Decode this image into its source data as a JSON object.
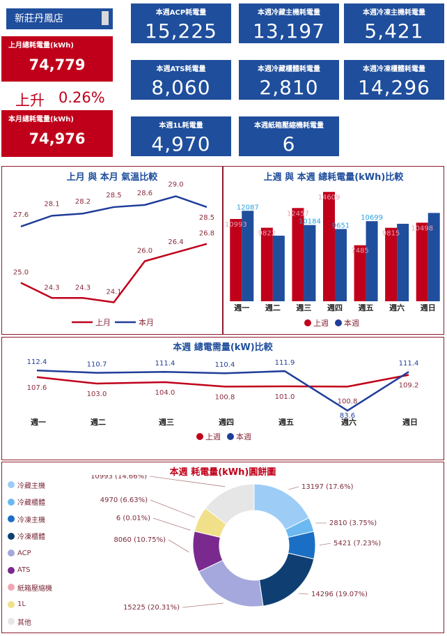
{
  "store": {
    "name": "新莊丹鳳店"
  },
  "last_month": {
    "label": "上月總耗電量(kWh)",
    "value": "74,779"
  },
  "change": {
    "direction": "上升",
    "percent": "0.26%"
  },
  "this_month": {
    "label": "本月總耗電量(kWh)",
    "value": "74,976"
  },
  "kpis": [
    {
      "label": "本週ACP耗電量",
      "value": "15,225"
    },
    {
      "label": "本週冷藏主機耗電量",
      "value": "13,197"
    },
    {
      "label": "本週冷凍主機耗電量",
      "value": "5,421"
    },
    {
      "label": "本週ATS耗電量",
      "value": "8,060"
    },
    {
      "label": "本週冷藏櫃體耗電量",
      "value": "2,810"
    },
    {
      "label": "本週冷凍櫃體耗電量",
      "value": "14,296"
    },
    {
      "label": "本週1L耗電量",
      "value": "4,970"
    },
    {
      "label": "本週紙箱壓縮機耗電量",
      "value": "6"
    }
  ],
  "colors": {
    "red": "#c0001a",
    "blue": "#1f4e9c",
    "navy": "#1f3d99",
    "lightblue": "#29a0e0",
    "pink": "#e8a0b0"
  },
  "chart_data": [
    {
      "type": "line",
      "title": "上月 與 本月 氣溫比較",
      "x": [
        1,
        2,
        3,
        4,
        5,
        6,
        7
      ],
      "series": [
        {
          "name": "上月",
          "values": [
            25.0,
            24.3,
            24.3,
            24.1,
            26.0,
            26.4,
            26.8
          ]
        },
        {
          "name": "本月",
          "values": [
            27.6,
            28.1,
            28.2,
            28.5,
            28.6,
            29.0,
            28.5
          ]
        }
      ],
      "legend": "bottom"
    },
    {
      "type": "bar",
      "title": "上週 與 本週 總耗電量(kWh)比較",
      "categories": [
        "週一",
        "週二",
        "週三",
        "週四",
        "週五",
        "週六",
        "週日"
      ],
      "series": [
        {
          "name": "上週",
          "values": [
            10993,
            9822,
            12457,
            14609,
            7485,
            9815,
            10498
          ]
        },
        {
          "name": "本週",
          "values": [
            12087,
            8760,
            10184,
            9651,
            10699,
            10350,
            11800
          ]
        }
      ],
      "data_labels_last_week": [
        "10993",
        "9822",
        "12457",
        "14609",
        "7485",
        "9815",
        "10498"
      ],
      "data_labels_this_week": [
        "12087",
        "",
        "10184",
        "9651",
        "10699",
        "",
        ""
      ],
      "legend": "bottom"
    },
    {
      "type": "line",
      "title": "本週 總電需量(kW)比較",
      "categories": [
        "週一",
        "週二",
        "週三",
        "週四",
        "週五",
        "週六",
        "週日"
      ],
      "series": [
        {
          "name": "上週",
          "values": [
            107.6,
            103.0,
            104.0,
            100.8,
            101.0,
            100.8,
            109.2
          ]
        },
        {
          "name": "本週",
          "values": [
            112.4,
            110.7,
            111.4,
            110.4,
            111.9,
            83.6,
            111.4
          ]
        }
      ],
      "legend": "bottom"
    },
    {
      "type": "pie",
      "title": "本週 耗電量(kWh)圓餅圖",
      "legend_labels": [
        "冷藏主機",
        "冷藏櫃體",
        "冷凍主機",
        "冷凍櫃體",
        "ACP",
        "ATS",
        "紙箱壓縮機",
        "1L",
        "其他"
      ],
      "legend_colors": [
        "#9dcdf7",
        "#6cb8f0",
        "#1a6fc4",
        "#0f3f72",
        "#a4a8dc",
        "#7a2a8e",
        "#f2a6b3",
        "#f0e08a",
        "#e6e6e6"
      ],
      "slices": [
        {
          "value": 13197,
          "label": "13197 (17.6%)",
          "color": "#9dcdf7"
        },
        {
          "value": 2810,
          "label": "2810 (3.75%)",
          "color": "#6cb8f0"
        },
        {
          "value": 5421,
          "label": "5421 (7.23%)",
          "color": "#1a6fc4"
        },
        {
          "value": 14296,
          "label": "14296 (19.07%)",
          "color": "#0f3f72"
        },
        {
          "value": 15225,
          "label": "15225 (20.31%)",
          "color": "#a4a8dc"
        },
        {
          "value": 8060,
          "label": "8060 (10.75%)",
          "color": "#7a2a8e"
        },
        {
          "value": 6,
          "label": "6 (0.01%)",
          "color": "#f2a6b3"
        },
        {
          "value": 4970,
          "label": "4970 (6.63%)",
          "color": "#f0e08a"
        },
        {
          "value": 10993,
          "label": "10993 (14.66%)",
          "color": "#e6e6e6"
        }
      ]
    }
  ]
}
